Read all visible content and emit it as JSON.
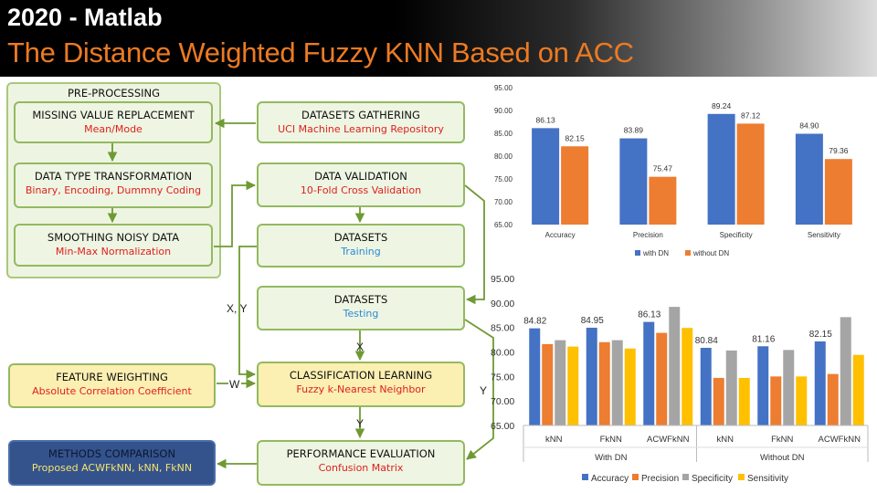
{
  "header": {
    "line1": "2020 - Matlab",
    "line2": "The Distance Weighted Fuzzy KNN Based on ACC"
  },
  "flow": {
    "preprocessing_title": "PRE-PROCESSING",
    "missing": {
      "title": "MISSING VALUE REPLACEMENT",
      "sub": "Mean/Mode"
    },
    "dtype": {
      "title": "DATA TYPE TRANSFORMATION",
      "sub": "Binary, Encoding, Dummny Coding"
    },
    "smooth": {
      "title": "SMOOTHING NOISY DATA",
      "sub": "Min-Max Normalization"
    },
    "gather": {
      "title": "DATASETS GATHERING",
      "sub": "UCI Machine Learning Repository"
    },
    "validation": {
      "title": "DATA VALIDATION",
      "sub": "10-Fold Cross Validation"
    },
    "training": {
      "title": "DATASETS",
      "sub": "Training"
    },
    "testing": {
      "title": "DATASETS",
      "sub": "Testing"
    },
    "feature": {
      "title": "FEATURE WEIGHTING",
      "sub": "Absolute Correlation Coefficient"
    },
    "classification": {
      "title": "CLASSIFICATION LEARNING",
      "sub": "Fuzzy k-Nearest Neighbor"
    },
    "performance": {
      "title": "PERFORMANCE EVALUATION",
      "sub": "Confusion Matrix"
    },
    "comparison": {
      "title": "METHODS COMPARISON",
      "sub": "Proposed ACWFkNN, kNN, FkNN"
    },
    "labels": {
      "xy": "X, Y",
      "x": "X",
      "w": "W",
      "y_mid": "Y",
      "y_right": "Y"
    }
  },
  "colors": {
    "blue": "#4472c4",
    "orange": "#ed7d31",
    "gray": "#a5a5a5",
    "yellow": "#ffc000",
    "green_border": "#94b960"
  },
  "chart_data": [
    {
      "type": "bar",
      "categories": [
        "Accuracy",
        "Precision",
        "Specificity",
        "Sensitivity"
      ],
      "series": [
        {
          "name": "with DN",
          "values": [
            86.13,
            83.89,
            89.24,
            84.9
          ]
        },
        {
          "name": "without DN",
          "values": [
            82.15,
            75.47,
            87.12,
            79.36
          ]
        }
      ],
      "ylim": [
        65,
        95
      ],
      "yticks": [
        "65.00",
        "70.00",
        "75.00",
        "80.00",
        "85.00",
        "90.00",
        "95.00"
      ],
      "data_labels": [
        [
          "86.13",
          "82.15"
        ],
        [
          "83.89",
          "75.47"
        ],
        [
          "89.24",
          "87.12"
        ],
        [
          "84.90",
          "79.36"
        ]
      ],
      "legend": "bottom",
      "grid": false
    },
    {
      "type": "bar",
      "categories": [
        "kNN",
        "FkNN",
        "ACWFkNN",
        "kNN",
        "FkNN",
        "ACWFkNN"
      ],
      "groups": [
        "With DN",
        "Without DN"
      ],
      "series": [
        {
          "name": "Accuracy",
          "values": [
            84.82,
            84.95,
            86.13,
            80.84,
            81.16,
            82.15
          ]
        },
        {
          "name": "Precision",
          "values": [
            81.6,
            82.0,
            83.9,
            74.7,
            75.0,
            75.5
          ]
        },
        {
          "name": "Specificity",
          "values": [
            82.4,
            82.4,
            89.2,
            80.3,
            80.4,
            87.1
          ]
        },
        {
          "name": "Sensitivity",
          "values": [
            81.1,
            80.7,
            84.9,
            74.7,
            75.0,
            79.4
          ]
        }
      ],
      "ylim": [
        65,
        95
      ],
      "yticks": [
        "65.00",
        "70.00",
        "75.00",
        "80.00",
        "85.00",
        "90.00",
        "95.00"
      ],
      "data_labels": [
        "84.82",
        "84.95",
        "86.13",
        "80.84",
        "81.16",
        "82.15"
      ],
      "legend": "bottom",
      "grid": false
    }
  ]
}
